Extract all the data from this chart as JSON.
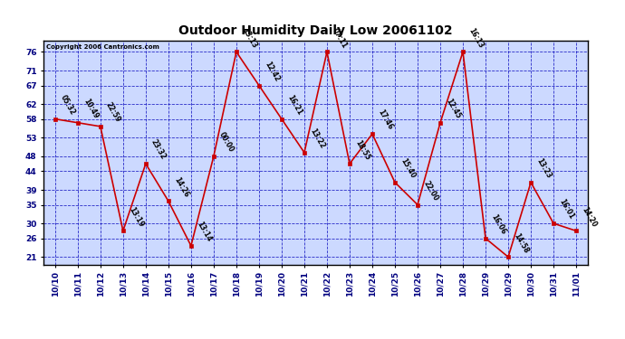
{
  "title": "Outdoor Humidity Daily Low 20061102",
  "copyright": "Copyright 2006 Cantronics.com",
  "x_labels": [
    "10/10",
    "10/11",
    "10/12",
    "10/13",
    "10/14",
    "10/15",
    "10/16",
    "10/17",
    "10/18",
    "10/19",
    "10/20",
    "10/21",
    "10/22",
    "10/23",
    "10/24",
    "10/25",
    "10/26",
    "10/27",
    "10/28",
    "10/29",
    "10/29",
    "10/30",
    "10/31",
    "11/01"
  ],
  "values": [
    58,
    57,
    56,
    28,
    46,
    36,
    24,
    48,
    76,
    67,
    58,
    49,
    76,
    46,
    54,
    41,
    35,
    57,
    76,
    26,
    21,
    41,
    30,
    28
  ],
  "time_labels": [
    "05:32",
    "10:49",
    "22:59",
    "13:19",
    "23:32",
    "14:26",
    "13:14",
    "00:00",
    "13:13",
    "12:42",
    "16:21",
    "13:22",
    "07:11",
    "18:55",
    "17:46",
    "15:40",
    "22:00",
    "12:45",
    "16:13",
    "16:06",
    "14:58",
    "13:23",
    "16:01",
    "14:20"
  ],
  "y_ticks": [
    21,
    26,
    30,
    35,
    39,
    44,
    48,
    53,
    58,
    62,
    67,
    71,
    76
  ],
  "y_min": 19,
  "y_max": 79,
  "line_color": "#cc0000",
  "marker_color": "#cc0000",
  "bg_color": "#ccd9ff",
  "fig_bg": "#ffffff",
  "grid_color": "#0000bb",
  "title_color": "#000000",
  "copyright_color": "#000000",
  "label_color": "#000000",
  "axis_color": "#000080",
  "title_fontsize": 10,
  "tick_fontsize": 6.5,
  "annot_fontsize": 5.5
}
